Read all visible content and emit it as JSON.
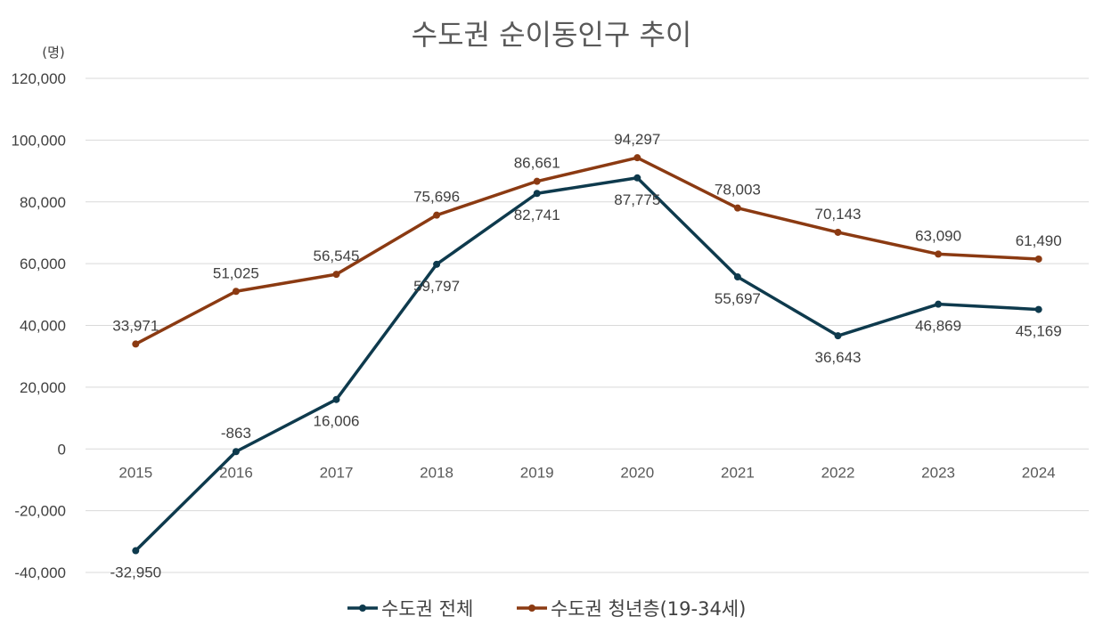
{
  "chart_data": {
    "type": "line",
    "title": "수도권 순이동인구 추이",
    "unit_label": "(명)",
    "categories": [
      "2015",
      "2016",
      "2017",
      "2018",
      "2019",
      "2020",
      "2021",
      "2022",
      "2023",
      "2024"
    ],
    "ylim": [
      -40000,
      120000
    ],
    "yticks": [
      120000,
      100000,
      80000,
      60000,
      40000,
      20000,
      0,
      -20000,
      -40000
    ],
    "ytick_labels": [
      "120,000",
      "100,000",
      "80,000",
      "60,000",
      "40,000",
      "20,000",
      "0",
      "-20,000",
      "-40,000"
    ],
    "grid": true,
    "legend_position": "bottom",
    "series": [
      {
        "name": "수도권 전체",
        "color": "#0e3a4d",
        "values": [
          -32950,
          -863,
          16006,
          59797,
          82741,
          87775,
          55697,
          36643,
          46869,
          45169
        ],
        "labels": [
          "-32,950",
          "-863",
          "16,006",
          "59,797",
          "82,741",
          "87,775",
          "55,697",
          "36,643",
          "46,869",
          "45,169"
        ],
        "label_pos": [
          "below",
          "above",
          "below",
          "below",
          "below",
          "below",
          "below",
          "below",
          "below",
          "below"
        ]
      },
      {
        "name": "수도권 청년층(19-34세)",
        "color": "#8b3a12",
        "values": [
          33971,
          51025,
          56545,
          75696,
          86661,
          94297,
          78003,
          70143,
          63090,
          61490
        ],
        "labels": [
          "33,971",
          "51,025",
          "56,545",
          "75,696",
          "86,661",
          "94,297",
          "78,003",
          "70,143",
          "63,090",
          "61,490"
        ],
        "label_pos": [
          "above",
          "above",
          "above",
          "above",
          "above",
          "above",
          "above",
          "above",
          "above",
          "above"
        ]
      }
    ]
  }
}
